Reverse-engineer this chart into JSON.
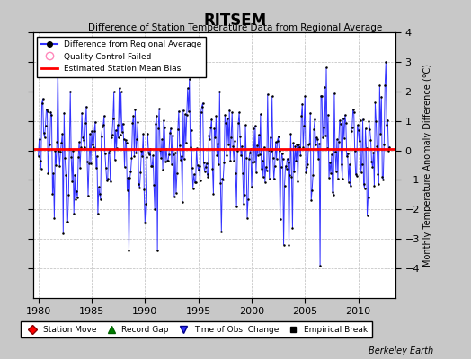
{
  "title": "RITSEM",
  "subtitle": "Difference of Station Temperature Data from Regional Average",
  "ylabel_right": "Monthly Temperature Anomaly Difference (°C)",
  "xlim": [
    1979.5,
    2013.5
  ],
  "ylim": [
    -5,
    4
  ],
  "yticks": [
    -4,
    -3,
    -2,
    -1,
    0,
    1,
    2,
    3,
    4
  ],
  "xticks": [
    1980,
    1985,
    1990,
    1995,
    2000,
    2005,
    2010
  ],
  "bias_value": 0.05,
  "line_color": "#3333FF",
  "dot_color": "#000000",
  "bias_color": "#FF0000",
  "background_color": "#C8C8C8",
  "plot_bg_color": "#FFFFFF",
  "watermark": "Berkeley Earth",
  "seed": 42,
  "n_points": 396,
  "start_year": 1980
}
